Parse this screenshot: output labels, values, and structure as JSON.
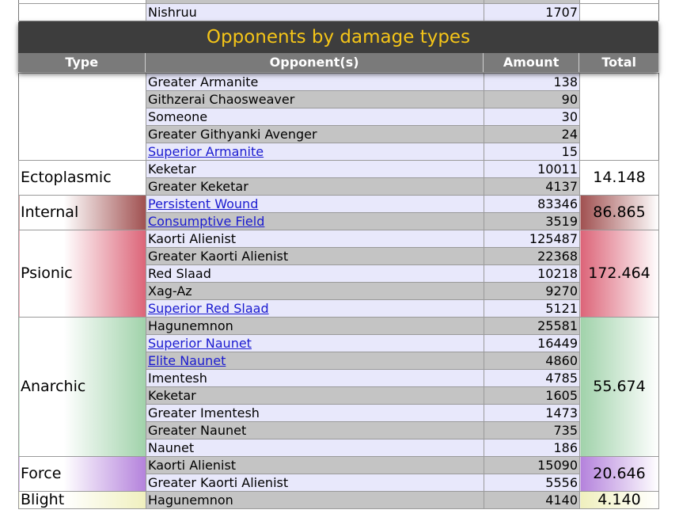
{
  "title": "Opponents by damage types",
  "columns": [
    "Type",
    "Opponent(s)",
    "Amount",
    "Total"
  ],
  "top_row": {
    "opponent": "Nishruu",
    "amount": "1707"
  },
  "continued_rows": [
    {
      "opponent": "Greater Armanite",
      "amount": "138",
      "link": false
    },
    {
      "opponent": "Githzerai Chaosweaver",
      "amount": "90",
      "link": false
    },
    {
      "opponent": "Someone",
      "amount": "30",
      "link": false
    },
    {
      "opponent": "Greater Githyanki Avenger",
      "amount": "24",
      "link": false
    },
    {
      "opponent": "Superior Armanite",
      "amount": "15",
      "link": true
    }
  ],
  "groups": [
    {
      "type": "Ectoplasmic",
      "total": "14.148",
      "color": "#ffffff",
      "rows": [
        {
          "opponent": "Keketar",
          "amount": "10011",
          "link": false
        },
        {
          "opponent": "Greater Keketar",
          "amount": "4137",
          "link": false
        }
      ]
    },
    {
      "type": "Internal",
      "total": "86.865",
      "color": "#a05050",
      "rows": [
        {
          "opponent": "Persistent Wound",
          "amount": "83346",
          "link": true
        },
        {
          "opponent": "Consumptive Field",
          "amount": "3519",
          "link": true
        }
      ]
    },
    {
      "type": "Psionic",
      "total": "172.464",
      "color": "#dc6478",
      "rows": [
        {
          "opponent": "Kaorti Alienist",
          "amount": "125487",
          "link": false
        },
        {
          "opponent": "Greater Kaorti Alienist",
          "amount": "22368",
          "link": false
        },
        {
          "opponent": "Red Slaad",
          "amount": "10218",
          "link": false
        },
        {
          "opponent": "Xag-Az",
          "amount": "9270",
          "link": false
        },
        {
          "opponent": "Superior Red Slaad",
          "amount": "5121",
          "link": true
        }
      ]
    },
    {
      "type": "Anarchic",
      "total": "55.674",
      "color": "#a0d2aa",
      "rows": [
        {
          "opponent": "Hagunemnon",
          "amount": "25581",
          "link": false
        },
        {
          "opponent": "Superior Naunet",
          "amount": "16449",
          "link": true
        },
        {
          "opponent": "Elite Naunet",
          "amount": "4860",
          "link": true
        },
        {
          "opponent": "Imentesh",
          "amount": "4785",
          "link": false
        },
        {
          "opponent": "Keketar",
          "amount": "1605",
          "link": false
        },
        {
          "opponent": "Greater Imentesh",
          "amount": "1473",
          "link": false
        },
        {
          "opponent": "Greater Naunet",
          "amount": "735",
          "link": false
        },
        {
          "opponent": "Naunet",
          "amount": "186",
          "link": false
        }
      ]
    },
    {
      "type": "Force",
      "total": "20.646",
      "color": "#b482dc",
      "rows": [
        {
          "opponent": "Kaorti Alienist",
          "amount": "15090",
          "link": false
        },
        {
          "opponent": "Greater Kaorti Alienist",
          "amount": "5556",
          "link": false
        }
      ]
    },
    {
      "type": "Blight",
      "total": "4.140",
      "color": "#f0f0be",
      "rows": [
        {
          "opponent": "Hagunemnon",
          "amount": "4140",
          "link": false
        }
      ]
    }
  ]
}
